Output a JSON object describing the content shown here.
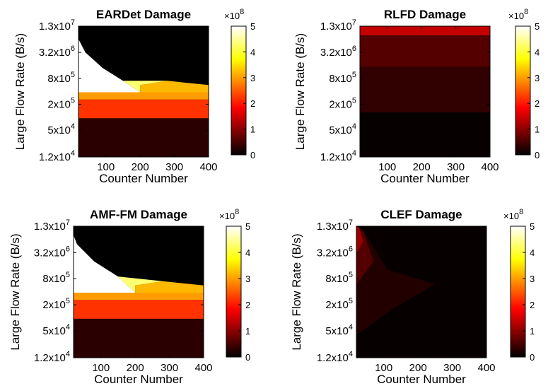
{
  "chart_data": [
    {
      "type": "heatmap",
      "title": "EARDet Damage",
      "xlabel": "Counter Number",
      "ylabel": "Large Flow Rate (B/s)",
      "xlim": [
        20,
        400
      ],
      "x_ticks": [
        100,
        200,
        300,
        400
      ],
      "y_scale": "log",
      "y_ticks": [
        "1.2x10^4",
        "5x10^4",
        "2x10^5",
        "8x10^5",
        "3.2x10^6",
        "1.3x10^7"
      ],
      "y_tick_values": [
        12000,
        50000,
        200000,
        800000,
        3200000,
        13000000
      ],
      "colorbar": {
        "range": [
          0,
          5
        ],
        "ticks": [
          "0",
          "1",
          "2",
          "3",
          "4",
          "5"
        ],
        "multiplier": "×10^8",
        "colormap": "hot"
      },
      "regions": [
        {
          "z": 0.3,
          "poly": [
            [
              20,
              12000
            ],
            [
              400,
              12000
            ],
            [
              400,
              95000
            ],
            [
              20,
              95000
            ]
          ]
        },
        {
          "z": 2.2,
          "poly": [
            [
              20,
              95000
            ],
            [
              400,
              95000
            ],
            [
              400,
              260000
            ],
            [
              20,
              260000
            ]
          ]
        },
        {
          "z": 3.0,
          "poly": [
            [
              20,
              260000
            ],
            [
              400,
              260000
            ],
            [
              400,
              380000
            ],
            [
              20,
              380000
            ]
          ]
        },
        {
          "z": 3.2,
          "poly": [
            [
              200,
              380000
            ],
            [
              400,
              380000
            ],
            [
              400,
              560000
            ],
            [
              280,
              700000
            ],
            [
              200,
              560000
            ]
          ]
        },
        {
          "z": 5.0,
          "poly": [
            [
              20,
              380000
            ],
            [
              200,
              380000
            ],
            [
              150,
              700000
            ],
            [
              90,
              1400000
            ],
            [
              40,
              3200000
            ],
            [
              20,
              6500000
            ]
          ]
        },
        {
          "z": 4.3,
          "poly": [
            [
              150,
              700000
            ],
            [
              200,
              380000
            ],
            [
              200,
              560000
            ],
            [
              280,
              700000
            ]
          ]
        }
      ]
    },
    {
      "type": "heatmap",
      "title": "RLFD Damage",
      "xlabel": "Counter Number",
      "ylabel": "Large Flow Rate (B/s)",
      "xlim": [
        20,
        400
      ],
      "x_ticks": [
        100,
        200,
        300,
        400
      ],
      "y_scale": "log",
      "y_ticks": [
        "1.2x10^4",
        "5x10^4",
        "2x10^5",
        "8x10^5",
        "3.2x10^6",
        "1.3x10^7"
      ],
      "y_tick_values": [
        12000,
        50000,
        200000,
        800000,
        3200000,
        13000000
      ],
      "colorbar": {
        "range": [
          0,
          5
        ],
        "ticks": [
          "0",
          "1",
          "2",
          "3",
          "4",
          "5"
        ],
        "multiplier": "×10^8",
        "colormap": "hot"
      },
      "regions": [
        {
          "z": 0.05,
          "poly": [
            [
              20,
              12000
            ],
            [
              400,
              12000
            ],
            [
              400,
              13000000
            ],
            [
              20,
              13000000
            ]
          ]
        },
        {
          "z": 0.35,
          "poly": [
            [
              20,
              130000
            ],
            [
              400,
              130000
            ],
            [
              400,
              13000000
            ],
            [
              20,
              13000000
            ]
          ]
        },
        {
          "z": 0.6,
          "poly": [
            [
              20,
              1500000
            ],
            [
              400,
              1500000
            ],
            [
              400,
              13000000
            ],
            [
              20,
              13000000
            ]
          ]
        },
        {
          "z": 1.4,
          "poly": [
            [
              20,
              8000000
            ],
            [
              400,
              8000000
            ],
            [
              400,
              13000000
            ],
            [
              20,
              13000000
            ]
          ]
        }
      ]
    },
    {
      "type": "heatmap",
      "title": "AMF-FM Damage",
      "xlabel": "Counter Number",
      "ylabel": "Large Flow Rate (B/s)",
      "xlim": [
        20,
        400
      ],
      "x_ticks": [
        100,
        200,
        300,
        400
      ],
      "y_scale": "log",
      "y_ticks": [
        "1.2x10^4",
        "5x10^4",
        "2x10^5",
        "8x10^5",
        "3.2x10^6",
        "1.3x10^7"
      ],
      "y_tick_values": [
        12000,
        50000,
        200000,
        800000,
        3200000,
        13000000
      ],
      "colorbar": {
        "range": [
          0,
          5
        ],
        "ticks": [
          "0",
          "1",
          "2",
          "3",
          "4",
          "5"
        ],
        "multiplier": "×10^8",
        "colormap": "hot"
      },
      "regions": [
        {
          "z": 0.3,
          "poly": [
            [
              20,
              12000
            ],
            [
              400,
              12000
            ],
            [
              400,
              95000
            ],
            [
              20,
              95000
            ]
          ]
        },
        {
          "z": 2.2,
          "poly": [
            [
              20,
              95000
            ],
            [
              400,
              95000
            ],
            [
              400,
              260000
            ],
            [
              20,
              260000
            ]
          ]
        },
        {
          "z": 3.0,
          "poly": [
            [
              20,
              260000
            ],
            [
              400,
              260000
            ],
            [
              400,
              380000
            ],
            [
              20,
              380000
            ]
          ]
        },
        {
          "z": 3.2,
          "poly": [
            [
              200,
              380000
            ],
            [
              400,
              380000
            ],
            [
              400,
              560000
            ],
            [
              280,
              700000
            ],
            [
              200,
              560000
            ]
          ]
        },
        {
          "z": 5.0,
          "poly": [
            [
              20,
              380000
            ],
            [
              200,
              380000
            ],
            [
              150,
              900000
            ],
            [
              80,
              2000000
            ],
            [
              30,
              5000000
            ],
            [
              20,
              8000000
            ]
          ]
        },
        {
          "z": 4.3,
          "poly": [
            [
              150,
              900000
            ],
            [
              200,
              380000
            ],
            [
              200,
              560000
            ],
            [
              280,
              700000
            ]
          ]
        }
      ]
    },
    {
      "type": "heatmap",
      "title": "CLEF Damage",
      "xlabel": "Counter Number",
      "ylabel": "Large Flow Rate (B/s)",
      "xlim": [
        20,
        400
      ],
      "x_ticks": [
        100,
        200,
        300,
        400
      ],
      "y_scale": "log",
      "y_ticks": [
        "1.2x10^4",
        "5x10^4",
        "2x10^5",
        "8x10^5",
        "3.2x10^6",
        "1.3x10^7"
      ],
      "y_tick_values": [
        12000,
        50000,
        200000,
        800000,
        3200000,
        13000000
      ],
      "colorbar": {
        "range": [
          0,
          5
        ],
        "ticks": [
          "0",
          "1",
          "2",
          "3",
          "4",
          "5"
        ],
        "multiplier": "×10^8",
        "colormap": "hot"
      },
      "regions": [
        {
          "z": 0.04,
          "poly": [
            [
              20,
              12000
            ],
            [
              400,
              12000
            ],
            [
              400,
              13000000
            ],
            [
              20,
              13000000
            ]
          ]
        },
        {
          "z": 0.25,
          "poly": [
            [
              20,
              40000
            ],
            [
              120,
              150000
            ],
            [
              250,
              600000
            ],
            [
              110,
              1300000
            ],
            [
              50,
              8000000
            ],
            [
              20,
              13000000
            ]
          ]
        },
        {
          "z": 0.6,
          "poly": [
            [
              20,
              600000
            ],
            [
              70,
              2000000
            ],
            [
              40,
              10000000
            ],
            [
              20,
              13000000
            ]
          ]
        },
        {
          "z": 1.1,
          "poly": [
            [
              20,
              3000000
            ],
            [
              40,
              6000000
            ],
            [
              28,
              12000000
            ],
            [
              20,
              13000000
            ]
          ]
        }
      ]
    }
  ]
}
